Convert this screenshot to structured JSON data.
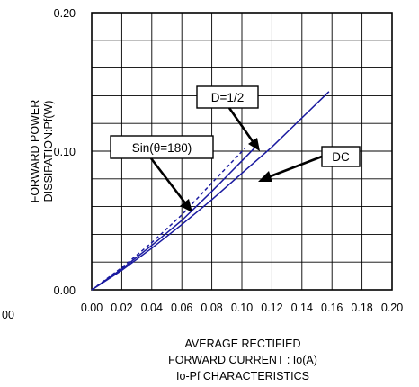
{
  "chart_data": {
    "type": "line",
    "title": "Io-Pf CHARACTERISTICS",
    "xlabel_lines": [
      "AVERAGE RECTIFIED",
      "FORWARD CURRENT : Io(A)"
    ],
    "ylabel_lines": [
      "FORWARD POWER",
      "DISSIPATION:Pf(W)"
    ],
    "xlim": [
      0,
      0.2
    ],
    "ylim": [
      0,
      0.2
    ],
    "x_ticks": [
      "0.00",
      "0.02",
      "0.04",
      "0.06",
      "0.08",
      "0.10",
      "0.12",
      "0.14",
      "0.16",
      "0.18",
      "0.20"
    ],
    "y_ticks": [
      "0.00",
      "0.10",
      "0.20"
    ],
    "grid": true,
    "stray_label": "00",
    "series": [
      {
        "name": "DC",
        "color": "#1a1aa0",
        "dash": "solid",
        "x": [
          0,
          0.01,
          0.02,
          0.04,
          0.06,
          0.08,
          0.1,
          0.12,
          0.14,
          0.158
        ],
        "y": [
          0,
          0.007,
          0.014,
          0.03,
          0.047,
          0.065,
          0.084,
          0.103,
          0.124,
          0.143
        ]
      },
      {
        "name": "D=1/2",
        "color": "#1a1aa0",
        "dash": "solid",
        "x": [
          0,
          0.02,
          0.04,
          0.06,
          0.08,
          0.1,
          0.11
        ],
        "y": [
          0,
          0.015,
          0.032,
          0.05,
          0.071,
          0.093,
          0.104
        ]
      },
      {
        "name": "Sin(θ=180)",
        "color": "#1a1aa0",
        "dash": "dashed",
        "x": [
          0,
          0.02,
          0.04,
          0.06,
          0.08,
          0.102
        ],
        "y": [
          0,
          0.016,
          0.034,
          0.054,
          0.077,
          0.102
        ]
      }
    ],
    "callouts": [
      {
        "label": "D=1/2"
      },
      {
        "label": "Sin(θ=180)"
      },
      {
        "label": "DC"
      }
    ]
  }
}
